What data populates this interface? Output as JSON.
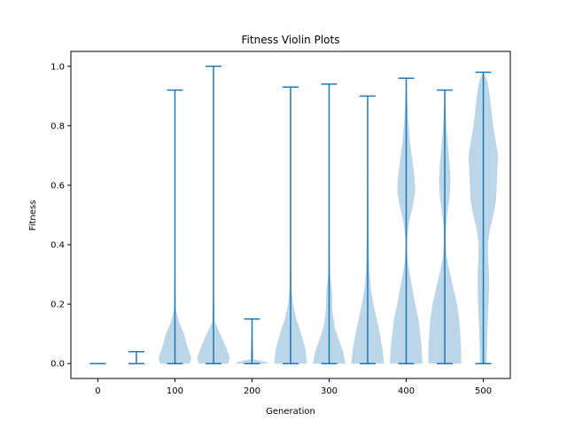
{
  "chart_data": {
    "type": "violin",
    "title": "Fitness Violin Plots",
    "xlabel": "Generation",
    "ylabel": "Fitness",
    "xlim": [
      -35,
      535
    ],
    "ylim": [
      -0.05,
      1.05
    ],
    "xticks": [
      0,
      100,
      200,
      300,
      400,
      500
    ],
    "yticks": [
      0.0,
      0.2,
      0.4,
      0.6,
      0.8,
      1.0
    ],
    "grid": false,
    "colors": {
      "body": "#1f77b4",
      "body_opacity": 0.3,
      "lines": "#1f77b4"
    },
    "violins": [
      {
        "x": 0,
        "min": 0.0,
        "max": 0.0,
        "profile": [
          [
            0.0,
            0.0
          ]
        ]
      },
      {
        "x": 50,
        "min": 0.0,
        "max": 0.04,
        "profile": [
          [
            0.0,
            0.0
          ],
          [
            0.04,
            0.0
          ]
        ]
      },
      {
        "x": 100,
        "min": 0.0,
        "max": 0.92,
        "profile": [
          [
            0.0,
            0.9
          ],
          [
            0.02,
            1.0
          ],
          [
            0.05,
            0.8
          ],
          [
            0.1,
            0.55
          ],
          [
            0.14,
            0.25
          ],
          [
            0.18,
            0.06
          ],
          [
            0.3,
            0.02
          ],
          [
            0.5,
            0.01
          ],
          [
            0.7,
            0.01
          ],
          [
            0.92,
            0.0
          ]
        ]
      },
      {
        "x": 150,
        "min": 0.0,
        "max": 1.0,
        "profile": [
          [
            0.0,
            0.9
          ],
          [
            0.02,
            1.0
          ],
          [
            0.05,
            0.8
          ],
          [
            0.09,
            0.5
          ],
          [
            0.12,
            0.25
          ],
          [
            0.14,
            0.08
          ],
          [
            0.25,
            0.02
          ],
          [
            0.5,
            0.01
          ],
          [
            0.75,
            0.01
          ],
          [
            1.0,
            0.0
          ]
        ]
      },
      {
        "x": 200,
        "min": 0.0,
        "max": 0.15,
        "profile": [
          [
            0.0,
            1.0
          ],
          [
            0.005,
            0.9
          ],
          [
            0.01,
            0.5
          ],
          [
            0.015,
            0.1
          ],
          [
            0.15,
            0.0
          ]
        ]
      },
      {
        "x": 250,
        "min": 0.0,
        "max": 0.93,
        "profile": [
          [
            0.0,
            1.0
          ],
          [
            0.05,
            0.9
          ],
          [
            0.1,
            0.65
          ],
          [
            0.15,
            0.35
          ],
          [
            0.2,
            0.15
          ],
          [
            0.25,
            0.06
          ],
          [
            0.4,
            0.02
          ],
          [
            0.6,
            0.01
          ],
          [
            0.8,
            0.01
          ],
          [
            0.93,
            0.0
          ]
        ]
      },
      {
        "x": 300,
        "min": 0.0,
        "max": 0.94,
        "profile": [
          [
            0.0,
            1.0
          ],
          [
            0.04,
            0.85
          ],
          [
            0.08,
            0.6
          ],
          [
            0.12,
            0.35
          ],
          [
            0.18,
            0.2
          ],
          [
            0.24,
            0.18
          ],
          [
            0.3,
            0.06
          ],
          [
            0.45,
            0.02
          ],
          [
            0.65,
            0.01
          ],
          [
            0.94,
            0.0
          ]
        ]
      },
      {
        "x": 350,
        "min": 0.0,
        "max": 0.9,
        "profile": [
          [
            0.0,
            1.0
          ],
          [
            0.05,
            0.9
          ],
          [
            0.1,
            0.75
          ],
          [
            0.15,
            0.55
          ],
          [
            0.2,
            0.35
          ],
          [
            0.25,
            0.2
          ],
          [
            0.32,
            0.1
          ],
          [
            0.45,
            0.05
          ],
          [
            0.6,
            0.03
          ],
          [
            0.75,
            0.02
          ],
          [
            0.9,
            0.0
          ]
        ]
      },
      {
        "x": 400,
        "min": 0.0,
        "max": 0.96,
        "profile": [
          [
            0.0,
            1.0
          ],
          [
            0.05,
            0.95
          ],
          [
            0.1,
            0.85
          ],
          [
            0.15,
            0.75
          ],
          [
            0.2,
            0.55
          ],
          [
            0.27,
            0.32
          ],
          [
            0.33,
            0.12
          ],
          [
            0.38,
            0.04
          ],
          [
            0.42,
            0.05
          ],
          [
            0.47,
            0.15
          ],
          [
            0.53,
            0.4
          ],
          [
            0.58,
            0.55
          ],
          [
            0.63,
            0.5
          ],
          [
            0.68,
            0.38
          ],
          [
            0.75,
            0.22
          ],
          [
            0.82,
            0.12
          ],
          [
            0.9,
            0.05
          ],
          [
            0.96,
            0.0
          ]
        ]
      },
      {
        "x": 450,
        "min": 0.0,
        "max": 0.92,
        "profile": [
          [
            0.0,
            1.0
          ],
          [
            0.05,
            1.0
          ],
          [
            0.1,
            0.95
          ],
          [
            0.15,
            0.88
          ],
          [
            0.2,
            0.75
          ],
          [
            0.26,
            0.5
          ],
          [
            0.32,
            0.25
          ],
          [
            0.37,
            0.1
          ],
          [
            0.41,
            0.05
          ],
          [
            0.45,
            0.06
          ],
          [
            0.5,
            0.15
          ],
          [
            0.56,
            0.3
          ],
          [
            0.62,
            0.35
          ],
          [
            0.67,
            0.3
          ],
          [
            0.73,
            0.2
          ],
          [
            0.8,
            0.1
          ],
          [
            0.87,
            0.04
          ],
          [
            0.92,
            0.0
          ]
        ]
      },
      {
        "x": 500,
        "min": 0.0,
        "max": 0.98,
        "profile": [
          [
            0.0,
            0.2
          ],
          [
            0.05,
            0.22
          ],
          [
            0.1,
            0.24
          ],
          [
            0.15,
            0.28
          ],
          [
            0.2,
            0.32
          ],
          [
            0.25,
            0.35
          ],
          [
            0.3,
            0.35
          ],
          [
            0.35,
            0.3
          ],
          [
            0.4,
            0.28
          ],
          [
            0.45,
            0.4
          ],
          [
            0.5,
            0.62
          ],
          [
            0.55,
            0.78
          ],
          [
            0.6,
            0.82
          ],
          [
            0.65,
            0.85
          ],
          [
            0.7,
            0.9
          ],
          [
            0.75,
            0.75
          ],
          [
            0.8,
            0.6
          ],
          [
            0.85,
            0.5
          ],
          [
            0.9,
            0.4
          ],
          [
            0.95,
            0.25
          ],
          [
            0.98,
            0.0
          ]
        ]
      }
    ]
  }
}
